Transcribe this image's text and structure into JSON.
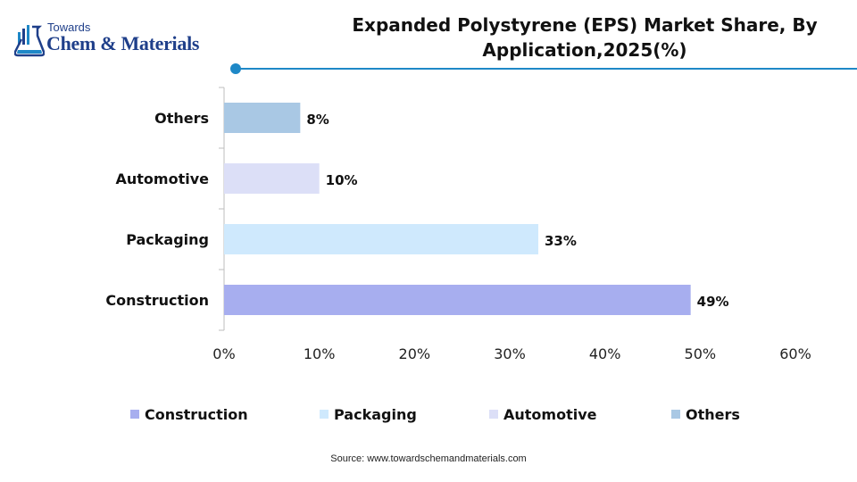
{
  "logo": {
    "line1": "Towards",
    "line2": "Chem & Materials"
  },
  "colors": {
    "accent": "#1e88c7",
    "brand": "#1f3f8a"
  },
  "chart_data": {
    "type": "bar",
    "orientation": "horizontal",
    "title": "Expanded Polystyrene (EPS) Market Share, By Application,2025(%)",
    "title_lines": [
      "Expanded Polystyrene (EPS) Market Share, By",
      "Application,2025(%)"
    ],
    "categories": [
      "Construction",
      "Packaging",
      "Automotive",
      "Others"
    ],
    "values": [
      49,
      33,
      10,
      8
    ],
    "value_labels": [
      "49%",
      "33%",
      "10%",
      "8%"
    ],
    "colors": [
      "#a7aeef",
      "#cfe9fd",
      "#dcdff7",
      "#a9c8e4"
    ],
    "xlim": [
      0,
      60
    ],
    "x_ticks": [
      0,
      10,
      20,
      30,
      40,
      50,
      60
    ],
    "x_tick_labels": [
      "0%",
      "10%",
      "20%",
      "30%",
      "40%",
      "50%",
      "60%"
    ],
    "grid": false,
    "legend_position": "bottom",
    "legend": [
      "Construction",
      "Packaging",
      "Automotive",
      "Others"
    ]
  },
  "source": "Source:  www.towardschemandmaterials.com"
}
